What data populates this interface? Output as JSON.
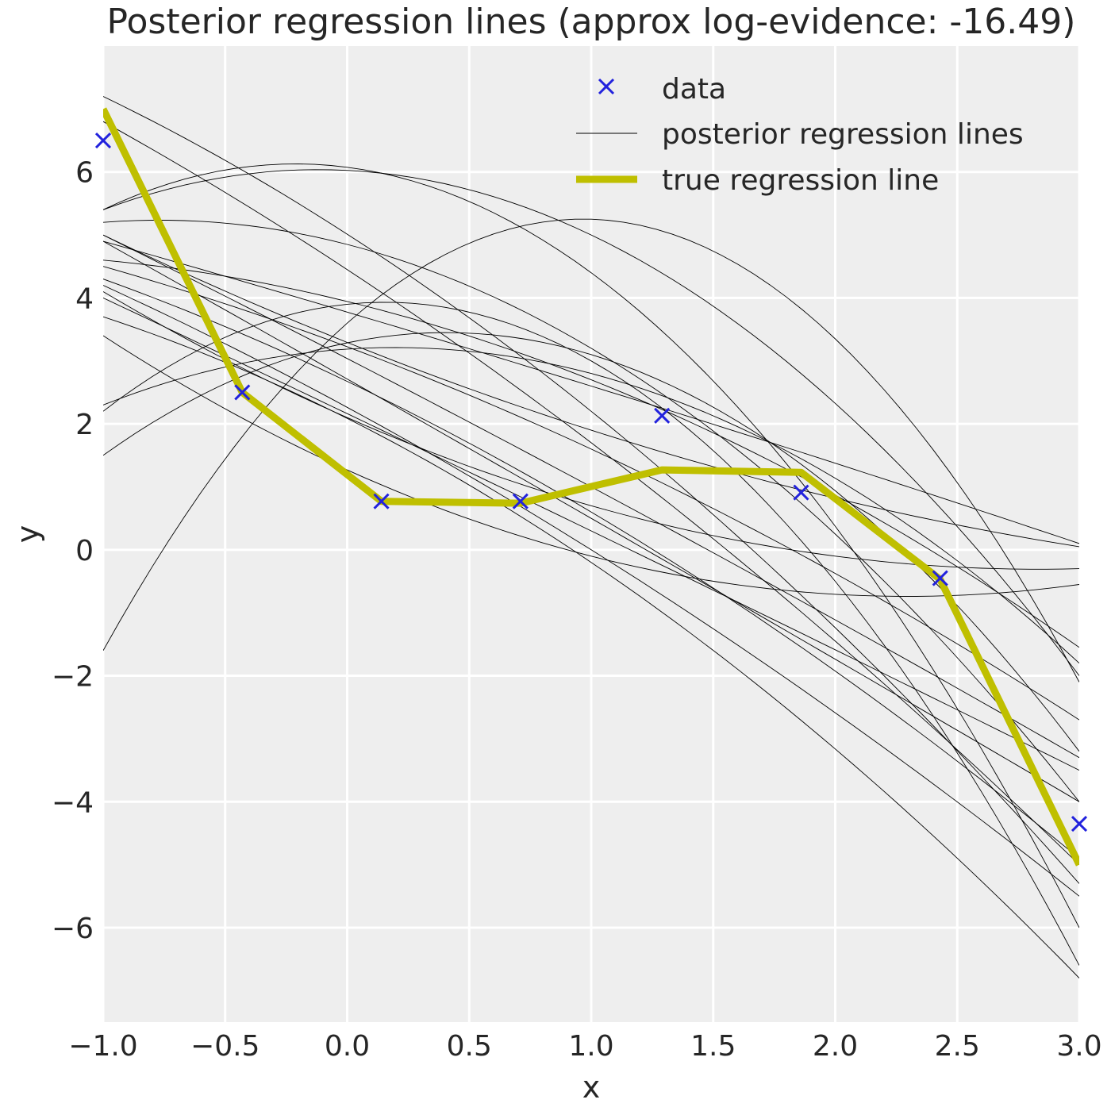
{
  "chart_data": {
    "type": "line",
    "title": "Posterior regression lines (approx log-evidence: -16.49)",
    "xlabel": "x",
    "ylabel": "y",
    "xlim": [
      -1.0,
      3.0
    ],
    "ylim": [
      -7.5,
      8.0
    ],
    "grid": true,
    "legend_position": "top-right",
    "x_tick_labels": [
      "−1.0",
      "−0.5",
      "0.0",
      "0.5",
      "1.0",
      "1.5",
      "2.0",
      "2.5",
      "3.0"
    ],
    "y_tick_labels": [
      "−6",
      "−4",
      "−2",
      "0",
      "2",
      "4",
      "6"
    ],
    "x_ticks": [
      -1.0,
      -0.5,
      0.0,
      0.5,
      1.0,
      1.5,
      2.0,
      2.5,
      3.0
    ],
    "y_ticks": [
      -6,
      -4,
      -2,
      0,
      2,
      4,
      6
    ],
    "series": [
      {
        "name": "data",
        "kind": "scatter",
        "marker": "x",
        "color": "#2222dd",
        "x": [
          -1.0,
          -0.43,
          0.14,
          0.71,
          1.29,
          1.86,
          2.43,
          3.0
        ],
        "y": [
          6.5,
          2.5,
          0.77,
          0.77,
          2.13,
          0.91,
          -0.45,
          -4.35
        ]
      },
      {
        "name": "posterior regression lines",
        "kind": "lines",
        "color": "#000000",
        "lines": [
          {
            "start": [
              -1.0,
              7.2
            ],
            "mid": [
              1.0,
              2.2
            ],
            "end": [
              3.0,
              -5.3
            ]
          },
          {
            "start": [
              -1.0,
              6.8
            ],
            "mid": [
              1.0,
              1.7
            ],
            "end": [
              3.0,
              -5.0
            ]
          },
          {
            "start": [
              -1.0,
              5.0
            ],
            "mid": [
              1.0,
              1.0
            ],
            "end": [
              3.0,
              -3.3
            ]
          },
          {
            "start": [
              -1.0,
              4.9
            ],
            "mid": [
              1.0,
              0.5
            ],
            "end": [
              3.0,
              -4.0
            ]
          },
          {
            "start": [
              -1.0,
              4.0
            ],
            "mid": [
              1.0,
              0.3
            ],
            "end": [
              3.0,
              -3.5
            ]
          },
          {
            "start": [
              -1.0,
              4.2
            ],
            "mid": [
              1.0,
              0.0
            ],
            "end": [
              3.0,
              -5.5
            ]
          },
          {
            "start": [
              -1.0,
              3.7
            ],
            "mid": [
              1.0,
              -0.2
            ],
            "end": [
              3.0,
              -6.8
            ]
          },
          {
            "start": [
              -1.0,
              4.5
            ],
            "mid": [
              1.0,
              1.6
            ],
            "end": [
              3.0,
              -2.7
            ]
          },
          {
            "start": [
              -1.0,
              5.2
            ],
            "mid": [
              1.0,
              3.2
            ],
            "end": [
              3.0,
              -4.0
            ]
          },
          {
            "start": [
              -1.0,
              5.4
            ],
            "mid": [
              1.0,
              4.4
            ],
            "end": [
              3.0,
              -6.0
            ]
          },
          {
            "start": [
              -1.0,
              5.4
            ],
            "mid": [
              1.0,
              5.0
            ],
            "end": [
              3.0,
              -2.0
            ]
          },
          {
            "start": [
              -1.0,
              -1.6
            ],
            "mid": [
              1.0,
              5.25
            ],
            "end": [
              3.0,
              -2.1
            ]
          },
          {
            "start": [
              -1.0,
              2.2
            ],
            "mid": [
              1.0,
              3.0
            ],
            "end": [
              3.0,
              -6.6
            ]
          },
          {
            "start": [
              -1.0,
              1.5
            ],
            "mid": [
              1.0,
              3.1
            ],
            "end": [
              3.0,
              -3.2
            ]
          },
          {
            "start": [
              -1.0,
              2.3
            ],
            "mid": [
              1.0,
              2.8
            ],
            "end": [
              3.0,
              -1.8
            ]
          },
          {
            "start": [
              -1.0,
              4.6
            ],
            "mid": [
              1.0,
              2.7
            ],
            "end": [
              3.0,
              -1.55
            ]
          },
          {
            "start": [
              -1.0,
              4.9
            ],
            "mid": [
              1.0,
              2.6
            ],
            "end": [
              3.0,
              0.1
            ]
          },
          {
            "start": [
              -1.0,
              5.0
            ],
            "mid": [
              1.0,
              1.9
            ],
            "end": [
              3.0,
              0.05
            ]
          },
          {
            "start": [
              -1.0,
              4.1
            ],
            "mid": [
              1.0,
              0.7
            ],
            "end": [
              3.0,
              -0.3
            ]
          },
          {
            "start": [
              -1.0,
              3.4
            ],
            "mid": [
              1.0,
              -0.1
            ],
            "end": [
              3.0,
              -0.55
            ]
          },
          {
            "start": [
              -1.0,
              4.3
            ],
            "mid": [
              1.0,
              0.6
            ],
            "end": [
              3.0,
              -4.9
            ]
          }
        ]
      },
      {
        "name": "true regression line",
        "kind": "line",
        "color": "#bfbf00",
        "x": [
          -1.0,
          -0.43,
          0.14,
          0.71,
          1.29,
          1.86,
          2.43,
          3.0
        ],
        "y": [
          7.0,
          2.5,
          0.77,
          0.74,
          1.27,
          1.23,
          -0.47,
          -5.0
        ]
      }
    ]
  }
}
